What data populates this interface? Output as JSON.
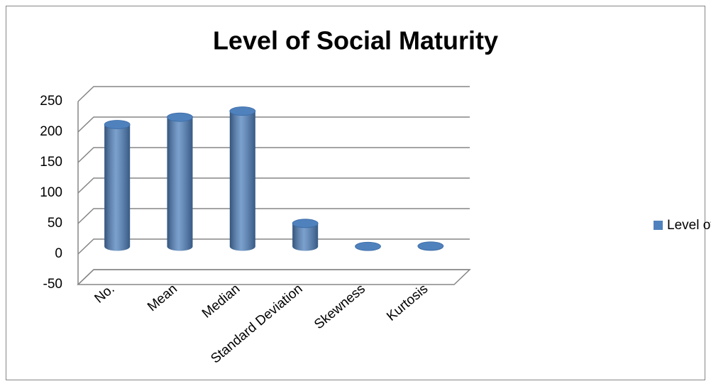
{
  "chart_data": {
    "type": "bar3d",
    "title": "Level of Social Maturity",
    "categories": [
      "No.",
      "Mean",
      "Median",
      "Standard Deviation",
      "Skewness",
      "Kurtosis"
    ],
    "series": [
      {
        "name": "Level of Social Maturity",
        "color": "#4f81bd",
        "values": [
          200,
          212,
          222,
          38,
          0.3,
          0.9
        ]
      }
    ],
    "ylim": [
      -50,
      250
    ],
    "yticks": [
      -50,
      0,
      50,
      100,
      150,
      200,
      250
    ],
    "grid": true,
    "legend": "right"
  }
}
